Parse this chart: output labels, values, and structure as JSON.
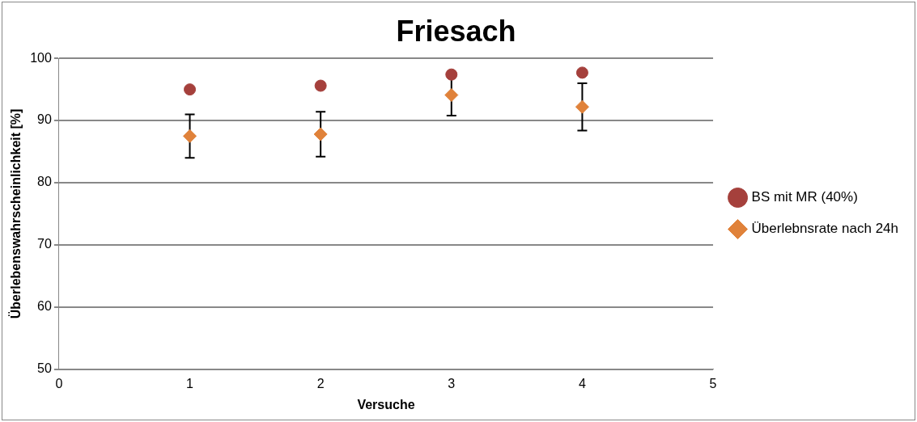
{
  "chart_data": {
    "type": "scatter",
    "title": "Friesach",
    "xlabel": "Versuche",
    "ylabel": "Überlebenswahrscheinlichkeit [%]",
    "x": [
      1,
      2,
      3,
      4
    ],
    "series": [
      {
        "name": "BS mit MR (40%)",
        "color": "#a5403c",
        "marker": "circle",
        "values": [
          95.0,
          95.6,
          97.4,
          97.7
        ]
      },
      {
        "name": "Überlebnsrate nach 24h",
        "color": "#e0823a",
        "marker": "diamond",
        "values": [
          87.5,
          87.8,
          94.1,
          92.2
        ],
        "errors": [
          3.5,
          3.6,
          3.3,
          3.8
        ]
      }
    ],
    "xlim": [
      0,
      5
    ],
    "xticks": [
      0,
      1,
      2,
      3,
      4,
      5
    ],
    "ylim": [
      50,
      100
    ],
    "yticks": [
      50,
      60,
      70,
      80,
      90,
      100
    ],
    "grid": "y",
    "legend": "right"
  }
}
